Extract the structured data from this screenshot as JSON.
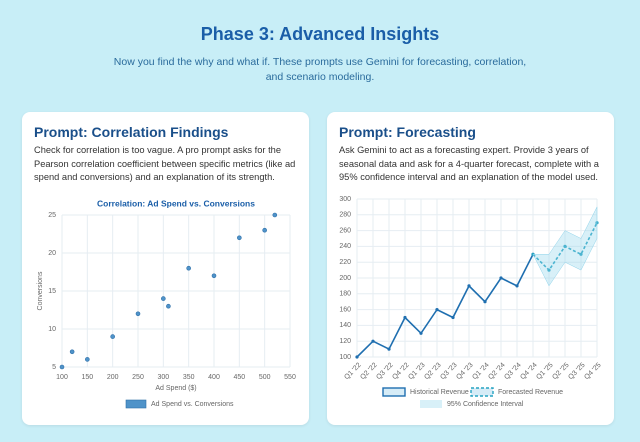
{
  "header": {
    "title": "Phase 3: Advanced Insights",
    "subtitle": "Now you find the why and what if. These prompts use Gemini for forecasting, correlation, and scenario modeling."
  },
  "cards": [
    {
      "title": "Prompt: Correlation Findings",
      "text": "Check for correlation is too vague. A pro prompt asks for the Pearson correlation coefficient between specific metrics (like ad spend and conversions) and an explanation of its strength."
    },
    {
      "title": "Prompt: Forecasting",
      "text": "Ask Gemini to act as a forecasting expert. Provide 3 years of seasonal data and ask for a 4-quarter forecast, complete with a 95% confidence interval and an explanation of the model used."
    }
  ],
  "chart_data": [
    {
      "type": "scatter",
      "title": "Correlation: Ad Spend vs. Conversions",
      "x_label": "Ad Spend ($)",
      "y_label": "Conversions",
      "x": [
        100,
        120,
        150,
        200,
        250,
        300,
        310,
        350,
        400,
        450,
        500,
        520
      ],
      "series": [
        {
          "name": "Ad Spend vs. Conversions",
          "color": "#4f93c9",
          "values": [
            5,
            7,
            6,
            9,
            12,
            14,
            13,
            18,
            17,
            22,
            23,
            25
          ]
        }
      ],
      "xlim": [
        100,
        550
      ],
      "xticks": [
        100,
        150,
        200,
        250,
        300,
        350,
        400,
        450,
        500,
        550
      ],
      "ylim": [
        5,
        25
      ],
      "yticks": [
        5,
        10,
        15,
        20,
        25
      ],
      "grid": true
    },
    {
      "type": "line",
      "categories": [
        "Q1 '22",
        "Q2 '22",
        "Q3 '22",
        "Q4 '22",
        "Q1 '23",
        "Q2 '23",
        "Q3 '23",
        "Q4 '23",
        "Q1 '24",
        "Q2 '24",
        "Q3 '24",
        "Q4 '24",
        "Q1 '25",
        "Q2 '25",
        "Q3 '25",
        "Q4 '25"
      ],
      "series": [
        {
          "name": "Historical Revenue",
          "color": "#1f6fb0",
          "values": [
            100,
            120,
            110,
            150,
            130,
            160,
            150,
            190,
            170,
            200,
            190,
            230,
            null,
            null,
            null,
            null
          ]
        },
        {
          "name": "Forecasted Revenue",
          "color": "#27a3c2",
          "dashed": true,
          "values": [
            null,
            null,
            null,
            null,
            null,
            null,
            null,
            null,
            null,
            null,
            null,
            230,
            210,
            240,
            230,
            270
          ]
        },
        {
          "name": "95% Confidence Interval",
          "color": "#8fd3ea",
          "lower": [
            null,
            null,
            null,
            null,
            null,
            null,
            null,
            null,
            null,
            null,
            null,
            230,
            190,
            220,
            210,
            250
          ],
          "upper": [
            null,
            null,
            null,
            null,
            null,
            null,
            null,
            null,
            null,
            null,
            null,
            230,
            230,
            260,
            250,
            290
          ]
        }
      ],
      "ylim": [
        100,
        300
      ],
      "yticks": [
        100,
        120,
        140,
        160,
        180,
        200,
        220,
        240,
        260,
        280,
        300
      ],
      "grid": true
    }
  ]
}
